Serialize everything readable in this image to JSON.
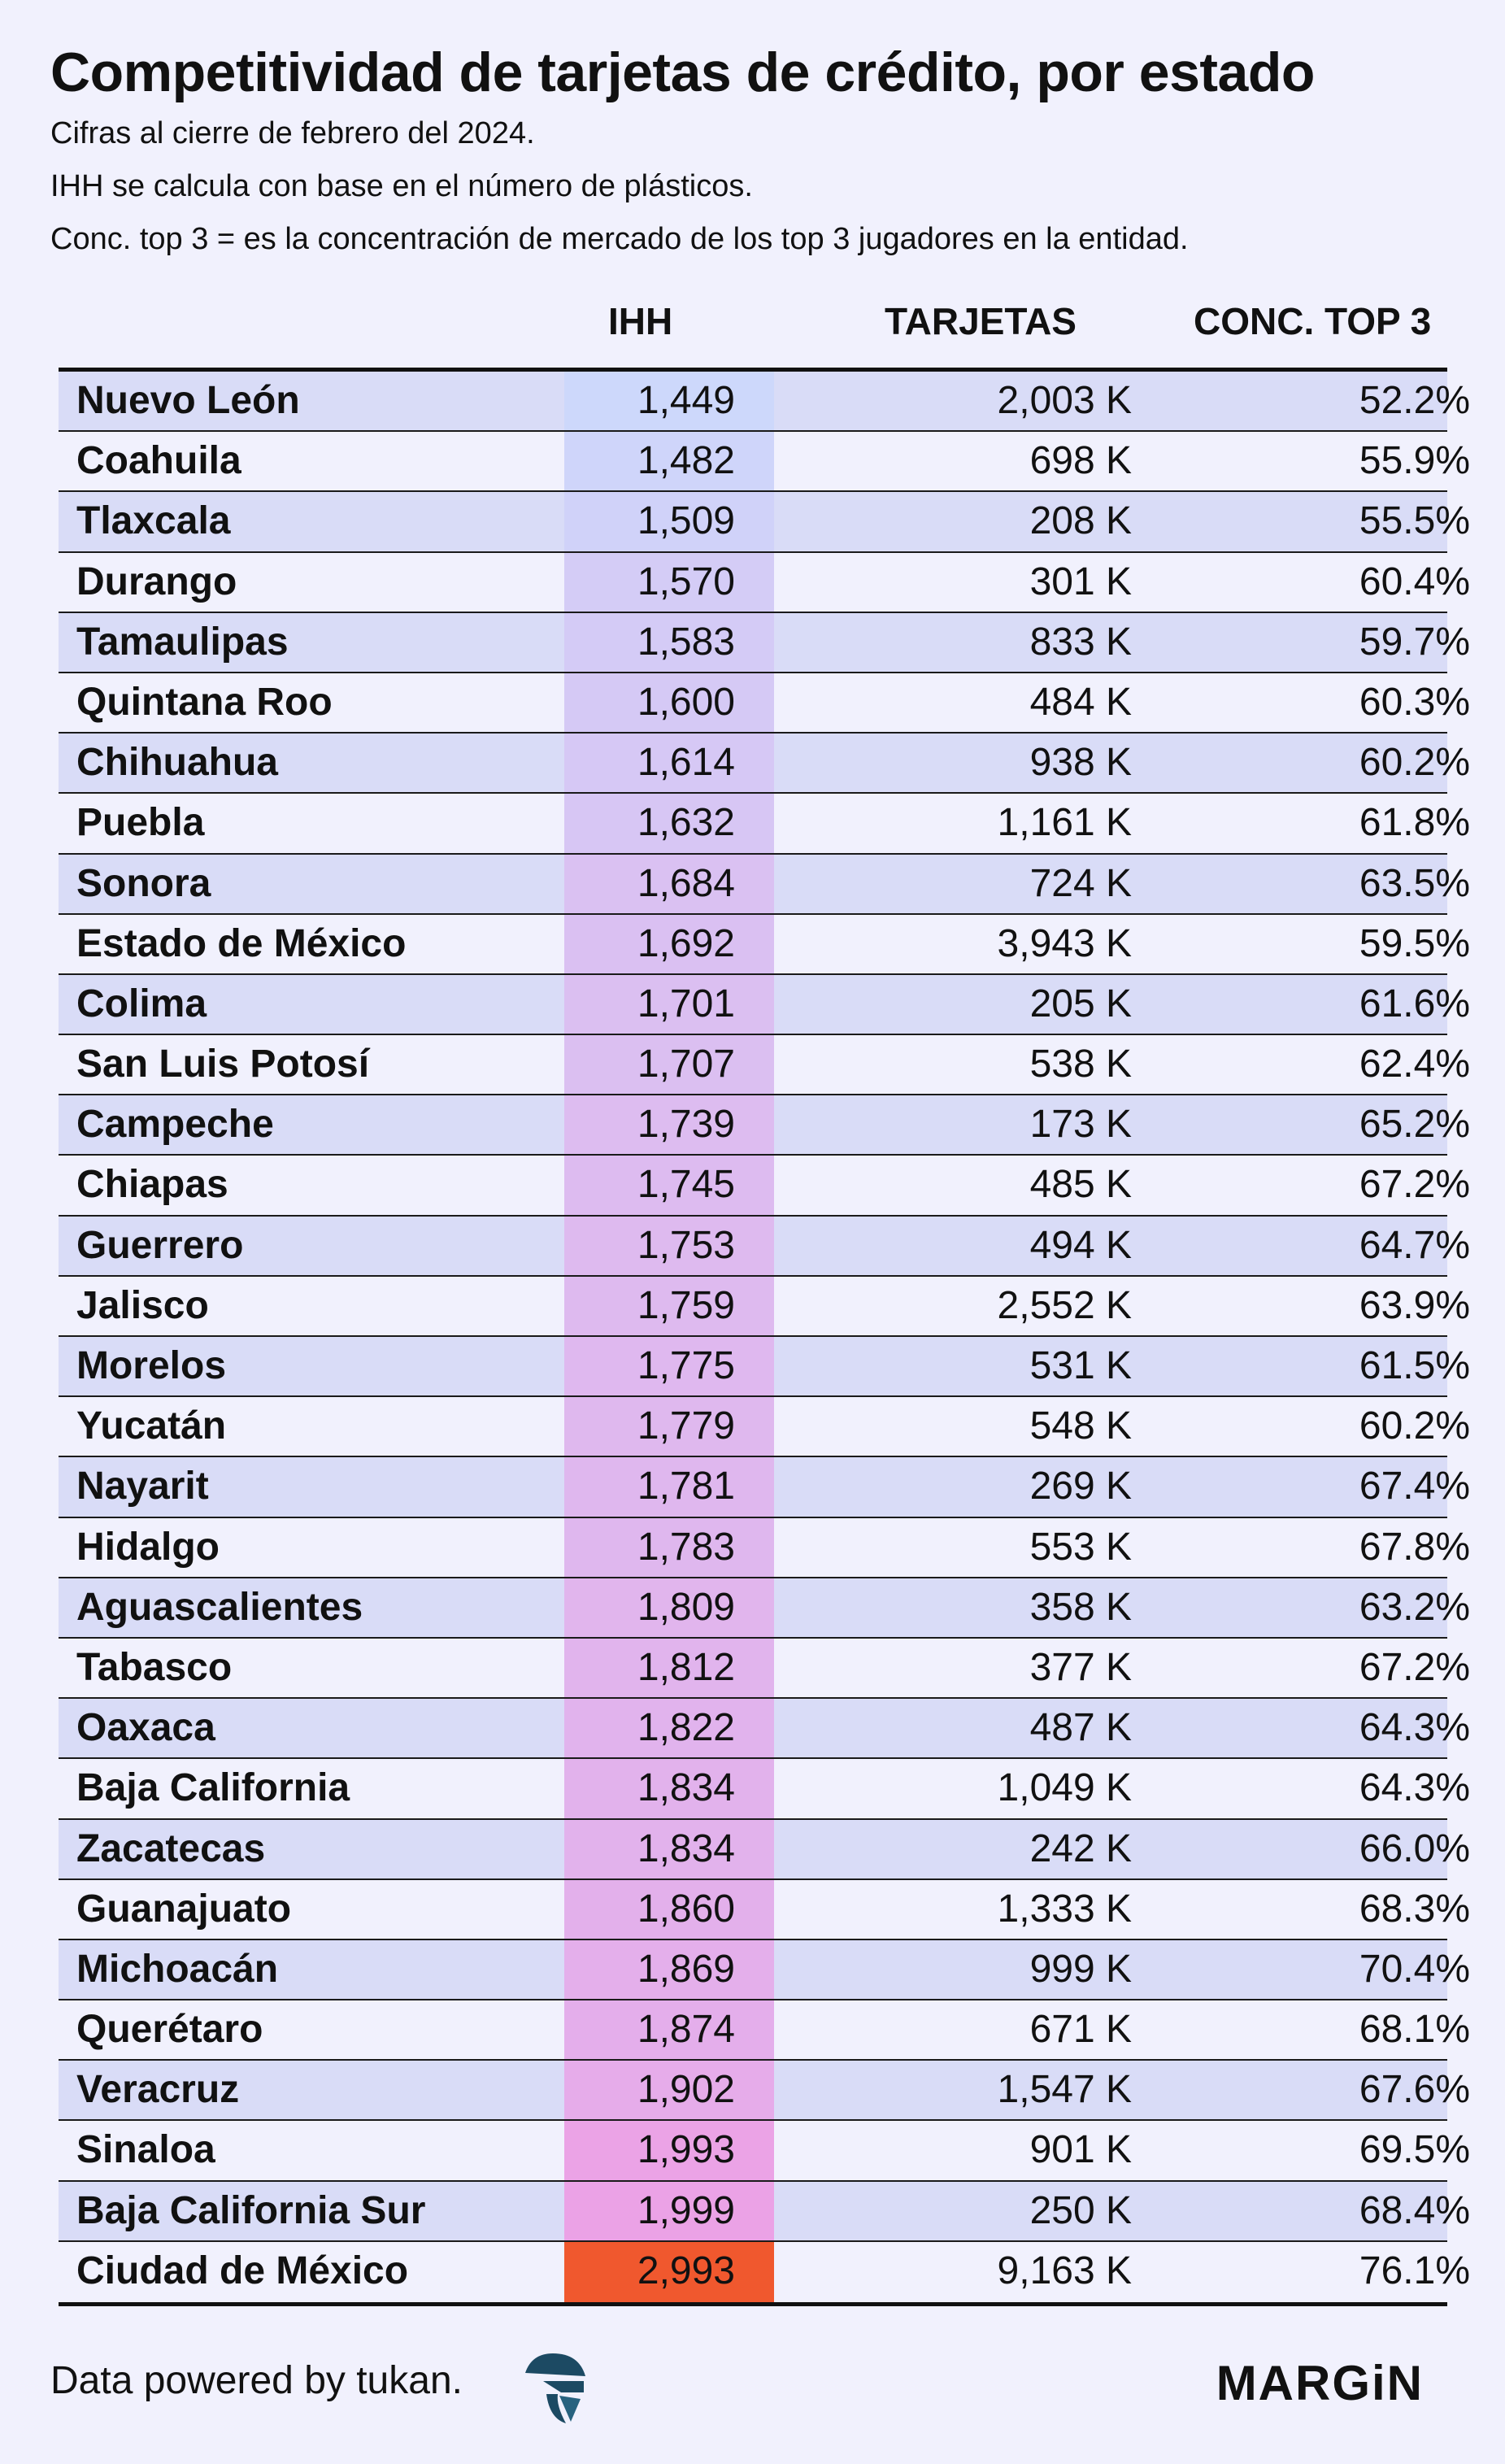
{
  "title": "Competitividad de tarjetas de crédito, por estado",
  "subtitles": [
    "Cifras al cierre de febrero del 2024.",
    "IHH se calcula con base en el número de plásticos.",
    "Conc. top 3 = es la concentración de mercado de los top 3 jugadores en la entidad."
  ],
  "columns": [
    "IHH",
    "TARJETAS",
    "CONC. TOP 3"
  ],
  "colors": {
    "background": "#f1f1fd",
    "row_stripe": "#d9dcf7",
    "ihh_low": "#cdd8fb",
    "ihh_high": "#eba2e6",
    "ihh_max": "#f0582e"
  },
  "chart_data": {
    "type": "table",
    "ihh_color_scale": "heatmap on IHH column",
    "rows": [
      {
        "state": "Nuevo León",
        "ihh": "1,449",
        "ihh_value": 1449,
        "tarjetas": "2,003 K",
        "conc": "52.2%"
      },
      {
        "state": "Coahuila",
        "ihh": "1,482",
        "ihh_value": 1482,
        "tarjetas": "698 K",
        "conc": "55.9%"
      },
      {
        "state": "Tlaxcala",
        "ihh": "1,509",
        "ihh_value": 1509,
        "tarjetas": "208 K",
        "conc": "55.5%"
      },
      {
        "state": "Durango",
        "ihh": "1,570",
        "ihh_value": 1570,
        "tarjetas": "301 K",
        "conc": "60.4%"
      },
      {
        "state": "Tamaulipas",
        "ihh": "1,583",
        "ihh_value": 1583,
        "tarjetas": "833 K",
        "conc": "59.7%"
      },
      {
        "state": "Quintana Roo",
        "ihh": "1,600",
        "ihh_value": 1600,
        "tarjetas": "484 K",
        "conc": "60.3%"
      },
      {
        "state": "Chihuahua",
        "ihh": "1,614",
        "ihh_value": 1614,
        "tarjetas": "938 K",
        "conc": "60.2%"
      },
      {
        "state": "Puebla",
        "ihh": "1,632",
        "ihh_value": 1632,
        "tarjetas": "1,161 K",
        "conc": "61.8%"
      },
      {
        "state": "Sonora",
        "ihh": "1,684",
        "ihh_value": 1684,
        "tarjetas": "724 K",
        "conc": "63.5%"
      },
      {
        "state": "Estado de México",
        "ihh": "1,692",
        "ihh_value": 1692,
        "tarjetas": "3,943 K",
        "conc": "59.5%"
      },
      {
        "state": "Colima",
        "ihh": "1,701",
        "ihh_value": 1701,
        "tarjetas": "205 K",
        "conc": "61.6%"
      },
      {
        "state": "San Luis Potosí",
        "ihh": "1,707",
        "ihh_value": 1707,
        "tarjetas": "538 K",
        "conc": "62.4%"
      },
      {
        "state": "Campeche",
        "ihh": "1,739",
        "ihh_value": 1739,
        "tarjetas": "173 K",
        "conc": "65.2%"
      },
      {
        "state": "Chiapas",
        "ihh": "1,745",
        "ihh_value": 1745,
        "tarjetas": "485 K",
        "conc": "67.2%"
      },
      {
        "state": "Guerrero",
        "ihh": "1,753",
        "ihh_value": 1753,
        "tarjetas": "494 K",
        "conc": "64.7%"
      },
      {
        "state": "Jalisco",
        "ihh": "1,759",
        "ihh_value": 1759,
        "tarjetas": "2,552 K",
        "conc": "63.9%"
      },
      {
        "state": "Morelos",
        "ihh": "1,775",
        "ihh_value": 1775,
        "tarjetas": "531 K",
        "conc": "61.5%"
      },
      {
        "state": "Yucatán",
        "ihh": "1,779",
        "ihh_value": 1779,
        "tarjetas": "548 K",
        "conc": "60.2%"
      },
      {
        "state": "Nayarit",
        "ihh": "1,781",
        "ihh_value": 1781,
        "tarjetas": "269 K",
        "conc": "67.4%"
      },
      {
        "state": "Hidalgo",
        "ihh": "1,783",
        "ihh_value": 1783,
        "tarjetas": "553 K",
        "conc": "67.8%"
      },
      {
        "state": "Aguascalientes",
        "ihh": "1,809",
        "ihh_value": 1809,
        "tarjetas": "358 K",
        "conc": "63.2%"
      },
      {
        "state": "Tabasco",
        "ihh": "1,812",
        "ihh_value": 1812,
        "tarjetas": "377 K",
        "conc": "67.2%"
      },
      {
        "state": "Oaxaca",
        "ihh": "1,822",
        "ihh_value": 1822,
        "tarjetas": "487 K",
        "conc": "64.3%"
      },
      {
        "state": "Baja California",
        "ihh": "1,834",
        "ihh_value": 1834,
        "tarjetas": "1,049 K",
        "conc": "64.3%"
      },
      {
        "state": "Zacatecas",
        "ihh": "1,834",
        "ihh_value": 1834,
        "tarjetas": "242 K",
        "conc": "66.0%"
      },
      {
        "state": "Guanajuato",
        "ihh": "1,860",
        "ihh_value": 1860,
        "tarjetas": "1,333 K",
        "conc": "68.3%"
      },
      {
        "state": "Michoacán",
        "ihh": "1,869",
        "ihh_value": 1869,
        "tarjetas": "999 K",
        "conc": "70.4%"
      },
      {
        "state": "Querétaro",
        "ihh": "1,874",
        "ihh_value": 1874,
        "tarjetas": "671 K",
        "conc": "68.1%"
      },
      {
        "state": "Veracruz",
        "ihh": "1,902",
        "ihh_value": 1902,
        "tarjetas": "1,547 K",
        "conc": "67.6%"
      },
      {
        "state": "Sinaloa",
        "ihh": "1,993",
        "ihh_value": 1993,
        "tarjetas": "901 K",
        "conc": "69.5%"
      },
      {
        "state": "Baja California Sur",
        "ihh": "1,999",
        "ihh_value": 1999,
        "tarjetas": "250 K",
        "conc": "68.4%"
      },
      {
        "state": "Ciudad de México",
        "ihh": "2,993",
        "ihh_value": 2993,
        "tarjetas": "9,163 K",
        "conc": "76.1%"
      }
    ]
  },
  "footer": {
    "source": "Data powered by tukan.",
    "source_icon": "tukan-logo-icon",
    "brand": "MARGiN"
  }
}
